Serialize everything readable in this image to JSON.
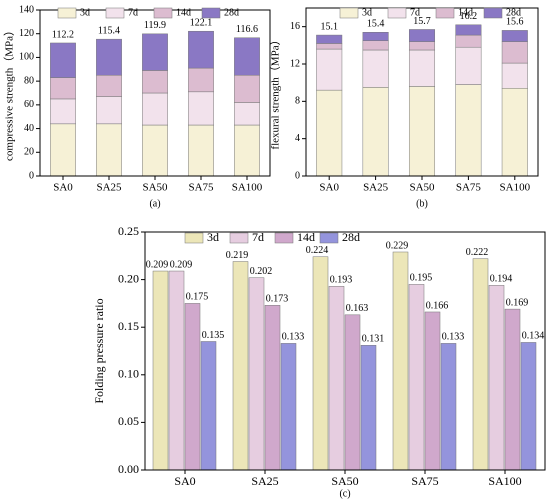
{
  "chart_data": [
    {
      "type": "stacked_bar",
      "caption": "(a)",
      "ylabel": "compressive strength（MPa）",
      "categories": [
        "SA0",
        "SA25",
        "SA50",
        "SA75",
        "SA100"
      ],
      "series": [
        {
          "name": "3d",
          "color": "#f6f1d6",
          "values": [
            44,
            44,
            43,
            43,
            43
          ]
        },
        {
          "name": "7d",
          "color": "#f2e2ec",
          "values": [
            21,
            23,
            27,
            28,
            19
          ]
        },
        {
          "name": "14d",
          "color": "#dcbcd0",
          "values": [
            18,
            18,
            19,
            20,
            23
          ]
        },
        {
          "name": "28d",
          "color": "#8a78c4",
          "values": [
            29.2,
            30.4,
            30.9,
            31.1,
            31.6
          ]
        }
      ],
      "totals": [
        112.2,
        115.4,
        119.9,
        122.1,
        116.6
      ],
      "ylim": [
        0,
        140
      ],
      "yticks": [
        0,
        20,
        40,
        60,
        80,
        100,
        120,
        140
      ],
      "legend": "top"
    },
    {
      "type": "stacked_bar",
      "caption": "(b)",
      "ylabel": "flexural strength（MPa）",
      "categories": [
        "SA0",
        "SA25",
        "SA50",
        "SA75",
        "SA100"
      ],
      "series": [
        {
          "name": "3d",
          "color": "#f6f1d6",
          "values": [
            9.2,
            9.5,
            9.6,
            9.8,
            9.4
          ]
        },
        {
          "name": "7d",
          "color": "#f2e2ec",
          "values": [
            4.4,
            4.0,
            3.9,
            4.0,
            2.7
          ]
        },
        {
          "name": "14d",
          "color": "#dcbcd0",
          "values": [
            0.6,
            1.0,
            0.9,
            1.3,
            2.3
          ]
        },
        {
          "name": "28d",
          "color": "#8a78c4",
          "values": [
            0.9,
            0.9,
            1.3,
            1.1,
            1.2
          ]
        }
      ],
      "totals": [
        15.1,
        15.4,
        15.7,
        16.2,
        15.6
      ],
      "ylim": [
        0,
        18
      ],
      "yticks": [
        0,
        4,
        8,
        12,
        16
      ],
      "legend": "top"
    },
    {
      "type": "grouped_bar",
      "caption": "(c)",
      "ylabel": "Folding pressure ratio",
      "categories": [
        "SA0",
        "SA25",
        "SA50",
        "SA75",
        "SA100"
      ],
      "series": [
        {
          "name": "3d",
          "color": "#ece6b8",
          "values": [
            0.209,
            0.219,
            0.224,
            0.229,
            0.222
          ]
        },
        {
          "name": "7d",
          "color": "#e6cde0",
          "values": [
            0.209,
            0.202,
            0.193,
            0.195,
            0.194
          ]
        },
        {
          "name": "14d",
          "color": "#d0a8cc",
          "values": [
            0.175,
            0.173,
            0.163,
            0.166,
            0.169
          ]
        },
        {
          "name": "28d",
          "color": "#9494dc",
          "values": [
            0.135,
            0.133,
            0.131,
            0.133,
            0.134
          ]
        }
      ],
      "ylim": [
        0,
        0.25
      ],
      "yticks": [
        {
          "value": 0,
          "label": "0.00"
        },
        {
          "value": 0.05,
          "label": "0.05"
        },
        {
          "value": 0.1,
          "label": "0.10"
        },
        {
          "value": 0.15,
          "label": "0.15"
        },
        {
          "value": 0.2,
          "label": "0.20"
        },
        {
          "value": 0.25,
          "label": "0.25"
        }
      ],
      "legend": "top"
    }
  ]
}
